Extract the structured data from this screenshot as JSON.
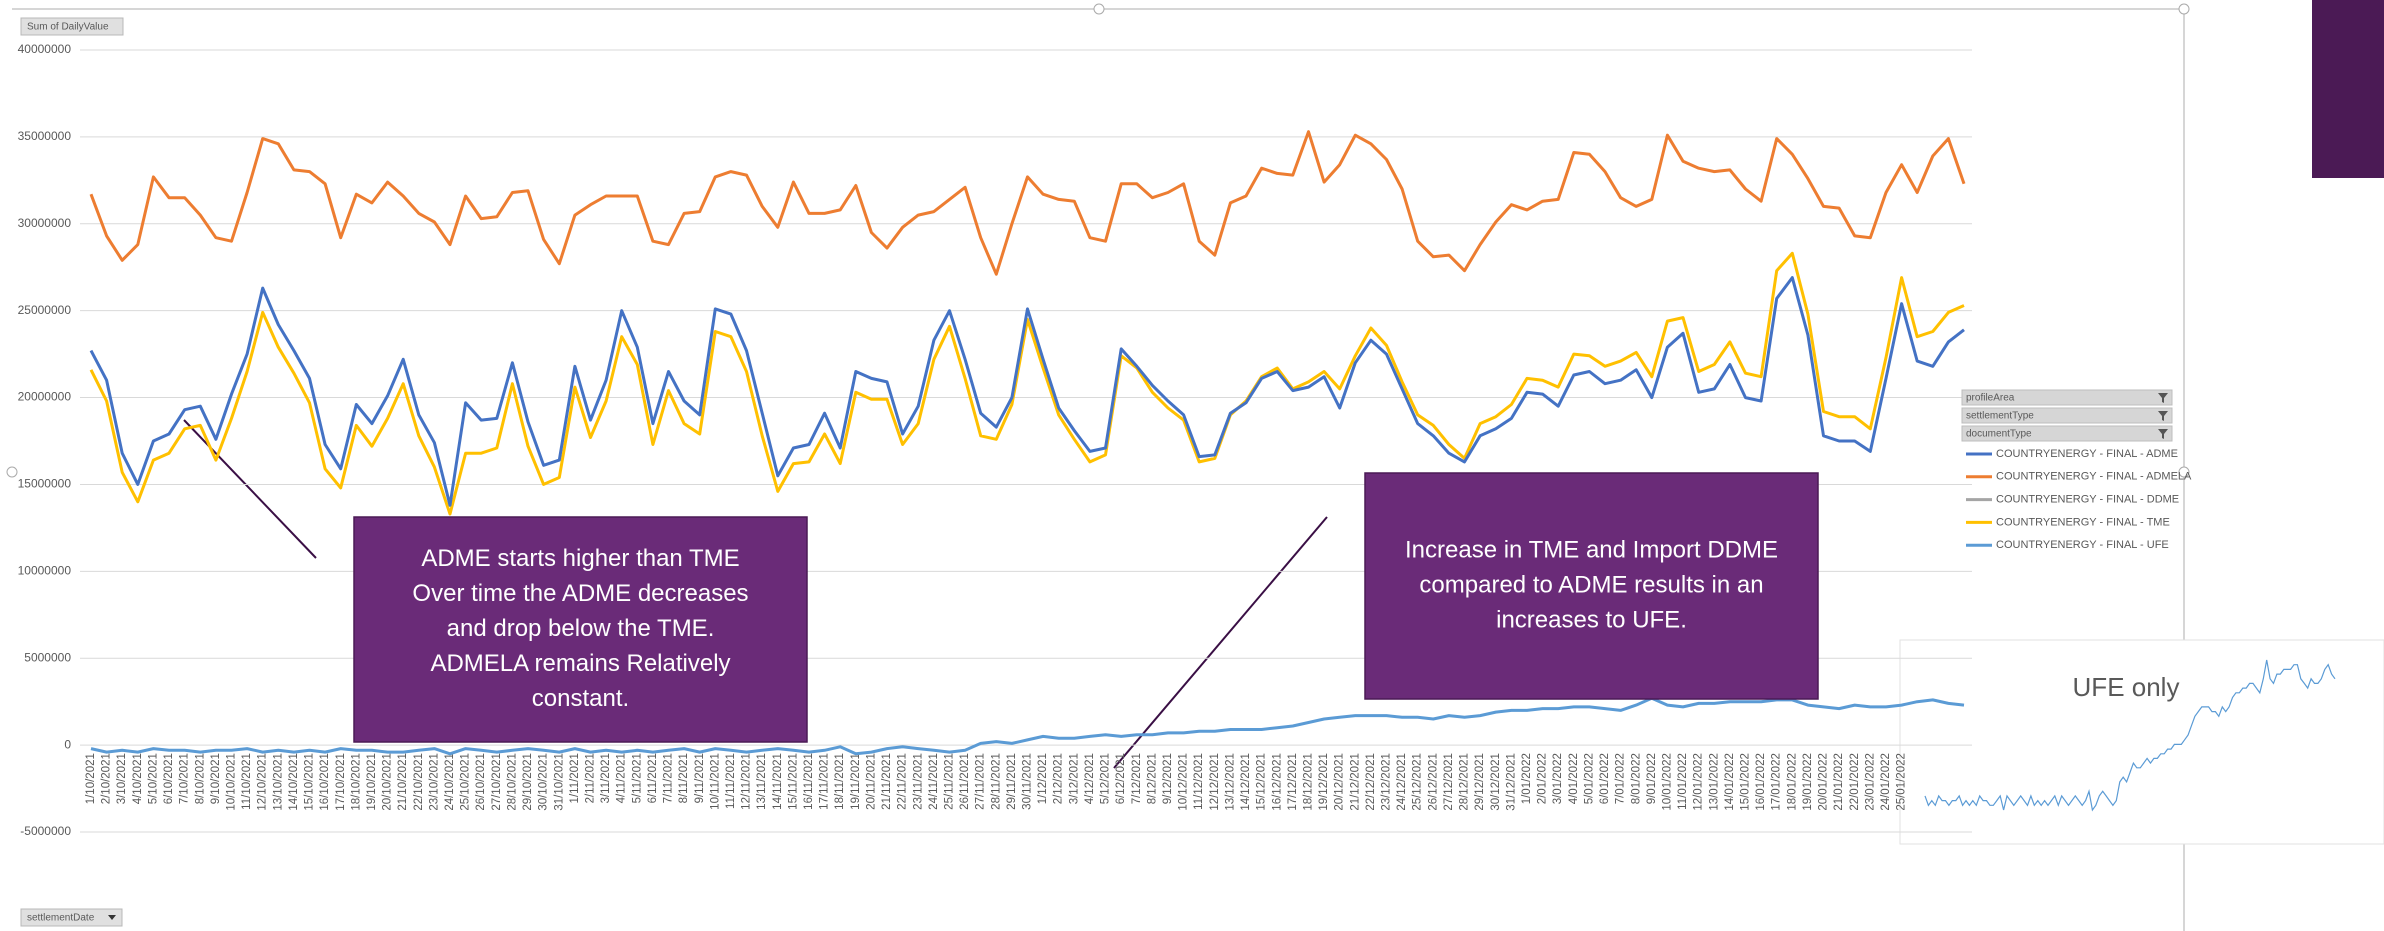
{
  "chart_data": {
    "type": "line",
    "value_field_button": "Sum of DailyValue",
    "axis_field_button": "settlementDate",
    "filters": [
      "profileArea",
      "settlementType",
      "documentType"
    ],
    "inset_title": "UFE only",
    "annotations": [
      {
        "lines": [
          "ADME starts higher than TME",
          "Over time the ADME decreases",
          "and drop below the TME.",
          "ADMELA remains Relatively",
          "constant."
        ]
      },
      {
        "lines": [
          "Increase in TME and Import DDME",
          "compared to ADME results in an",
          "increases to UFE."
        ]
      }
    ],
    "ylim": [
      -5000000,
      40000000
    ],
    "yticks": [
      40000000,
      35000000,
      30000000,
      25000000,
      20000000,
      15000000,
      10000000,
      5000000,
      0,
      -5000000
    ],
    "grid": true,
    "categories": [
      "1/10/2021",
      "2/10/2021",
      "3/10/2021",
      "4/10/2021",
      "5/10/2021",
      "6/10/2021",
      "7/10/2021",
      "8/10/2021",
      "9/10/2021",
      "10/10/2021",
      "11/10/2021",
      "12/10/2021",
      "13/10/2021",
      "14/10/2021",
      "15/10/2021",
      "16/10/2021",
      "17/10/2021",
      "18/10/2021",
      "19/10/2021",
      "20/10/2021",
      "21/10/2021",
      "22/10/2021",
      "23/10/2021",
      "24/10/2021",
      "25/10/2021",
      "26/10/2021",
      "27/10/2021",
      "28/10/2021",
      "29/10/2021",
      "30/10/2021",
      "31/10/2021",
      "1/11/2021",
      "2/11/2021",
      "3/11/2021",
      "4/11/2021",
      "5/11/2021",
      "6/11/2021",
      "7/11/2021",
      "8/11/2021",
      "9/11/2021",
      "10/11/2021",
      "11/11/2021",
      "12/11/2021",
      "13/11/2021",
      "14/11/2021",
      "15/11/2021",
      "16/11/2021",
      "17/11/2021",
      "18/11/2021",
      "19/11/2021",
      "20/11/2021",
      "21/11/2021",
      "22/11/2021",
      "23/11/2021",
      "24/11/2021",
      "25/11/2021",
      "26/11/2021",
      "27/11/2021",
      "28/11/2021",
      "29/11/2021",
      "30/11/2021",
      "1/12/2021",
      "2/12/2021",
      "3/12/2021",
      "4/12/2021",
      "5/12/2021",
      "6/12/2021",
      "7/12/2021",
      "8/12/2021",
      "9/12/2021",
      "10/12/2021",
      "11/12/2021",
      "12/12/2021",
      "13/12/2021",
      "14/12/2021",
      "15/12/2021",
      "16/12/2021",
      "17/12/2021",
      "18/12/2021",
      "19/12/2021",
      "20/12/2021",
      "21/12/2021",
      "22/12/2021",
      "23/12/2021",
      "24/12/2021",
      "25/12/2021",
      "26/12/2021",
      "27/12/2021",
      "28/12/2021",
      "29/12/2021",
      "30/12/2021",
      "31/12/2021",
      "1/01/2022",
      "2/01/2022",
      "3/01/2022",
      "4/01/2022",
      "5/01/2022",
      "6/01/2022",
      "7/01/2022",
      "8/01/2022",
      "9/01/2022",
      "10/01/2022",
      "11/01/2022",
      "12/01/2022",
      "13/01/2022",
      "14/01/2022",
      "15/01/2022",
      "16/01/2022",
      "17/01/2022",
      "18/01/2022",
      "19/01/2022",
      "20/01/2022",
      "21/01/2022",
      "22/01/2022",
      "23/01/2022",
      "24/01/2022",
      "25/01/2022",
      null,
      null,
      null,
      null
    ],
    "series": [
      {
        "name": "COUNTRYENERGY - FINAL - ADME",
        "color": "#4472c4",
        "values": [
          22700000,
          21000000,
          16800000,
          15000000,
          17500000,
          17900000,
          19300000,
          19500000,
          17600000,
          20200000,
          22500000,
          26300000,
          24200000,
          22700000,
          21100000,
          17300000,
          15900000,
          19600000,
          18500000,
          20100000,
          22200000,
          19000000,
          17400000,
          13800000,
          19700000,
          18700000,
          18800000,
          22000000,
          18600000,
          16100000,
          16400000,
          21800000,
          18700000,
          21000000,
          25000000,
          22900000,
          18500000,
          21500000,
          19800000,
          19000000,
          25100000,
          24800000,
          22700000,
          19100000,
          15500000,
          17100000,
          17300000,
          19100000,
          17100000,
          21500000,
          21100000,
          20900000,
          17900000,
          19500000,
          23300000,
          25000000,
          22200000,
          19100000,
          18300000,
          20000000,
          25100000,
          22200000,
          19400000,
          18100000,
          16900000,
          17100000,
          22800000,
          21800000,
          20700000,
          19800000,
          19000000,
          16600000,
          16700000,
          19100000,
          19700000,
          21100000,
          21500000,
          20400000,
          20600000,
          21200000,
          19400000,
          22000000,
          23300000,
          22500000,
          20500000,
          18500000,
          17800000,
          16800000,
          16300000,
          17800000,
          18200000,
          18800000,
          20300000,
          20200000,
          19500000,
          21300000,
          21500000,
          20800000,
          21000000,
          21600000,
          20000000,
          22900000,
          23700000,
          20300000,
          20500000,
          21900000,
          20000000,
          19800000,
          25700000,
          26900000,
          23600000,
          17800000,
          17500000,
          17500000,
          16900000,
          21100000,
          25400000,
          22100000,
          21800000,
          23200000,
          23900000
        ]
      },
      {
        "name": "COUNTRYENERGY - FINAL - ADMELA",
        "color": "#ed7d31",
        "values": [
          31700000,
          29300000,
          27900000,
          28800000,
          32700000,
          31500000,
          31500000,
          30500000,
          29200000,
          29000000,
          31800000,
          34900000,
          34600000,
          33100000,
          33000000,
          32300000,
          29200000,
          31700000,
          31200000,
          32400000,
          31600000,
          30600000,
          30100000,
          28800000,
          31600000,
          30300000,
          30400000,
          31800000,
          31900000,
          29100000,
          27700000,
          30500000,
          31100000,
          31600000,
          31600000,
          31600000,
          29000000,
          28800000,
          30600000,
          30700000,
          32700000,
          33000000,
          32800000,
          31000000,
          29800000,
          32400000,
          30600000,
          30600000,
          30800000,
          32200000,
          29500000,
          28600000,
          29800000,
          30500000,
          30700000,
          31400000,
          32100000,
          29200000,
          27100000,
          30000000,
          32700000,
          31700000,
          31400000,
          31300000,
          29200000,
          29000000,
          32300000,
          32300000,
          31500000,
          31800000,
          32300000,
          29000000,
          28200000,
          31200000,
          31600000,
          33200000,
          32900000,
          32800000,
          35300000,
          32400000,
          33400000,
          35100000,
          34600000,
          33700000,
          32000000,
          29000000,
          28100000,
          28200000,
          27300000,
          28800000,
          30100000,
          31100000,
          30800000,
          31300000,
          31400000,
          34100000,
          34000000,
          33000000,
          31500000,
          31000000,
          31400000,
          35100000,
          33600000,
          33200000,
          33000000,
          33100000,
          32000000,
          31300000,
          34900000,
          34000000,
          32600000,
          31000000,
          30900000,
          29300000,
          29200000,
          31800000,
          33400000,
          31800000,
          33900000,
          34900000,
          32300000
        ]
      },
      {
        "name": "COUNTRYENERGY - FINAL - DDME",
        "color": "#a5a5a5",
        "values": [
          null,
          null,
          null,
          null,
          null,
          null,
          null,
          null,
          null,
          null,
          null,
          null,
          null,
          null,
          null,
          null,
          null,
          null,
          null,
          null,
          null,
          null,
          null,
          null,
          null,
          null,
          null,
          null,
          null,
          null,
          null,
          null,
          null,
          null,
          null,
          null,
          null,
          null,
          null,
          null,
          null,
          null,
          null,
          null,
          null,
          null,
          null,
          null,
          null,
          null,
          null,
          null,
          null,
          null,
          null,
          null,
          null,
          null,
          null,
          null,
          null,
          null,
          null,
          null,
          null,
          null,
          null,
          null,
          null,
          null,
          null,
          null,
          null,
          null,
          null,
          null,
          null,
          null,
          null,
          null,
          null,
          null,
          null,
          null,
          null,
          null,
          null,
          null,
          null,
          null,
          null,
          null,
          null,
          null,
          null,
          null,
          null,
          null,
          null,
          null,
          null,
          null,
          null,
          null,
          null,
          null,
          null,
          null,
          null,
          null,
          null,
          null,
          null,
          null,
          null,
          null,
          null,
          null,
          null,
          null,
          null
        ]
      },
      {
        "name": "COUNTRYENERGY - FINAL - TME",
        "color": "#ffc000",
        "values": [
          21600000,
          19800000,
          15700000,
          14000000,
          16400000,
          16800000,
          18200000,
          18400000,
          16400000,
          18800000,
          21500000,
          24900000,
          22900000,
          21400000,
          19700000,
          15900000,
          14800000,
          18400000,
          17200000,
          18800000,
          20800000,
          17800000,
          16000000,
          13300000,
          16800000,
          16800000,
          17100000,
          20800000,
          17200000,
          15000000,
          15400000,
          20600000,
          17700000,
          19800000,
          23500000,
          21900000,
          17300000,
          20400000,
          18500000,
          17900000,
          23800000,
          23500000,
          21500000,
          17800000,
          14600000,
          16200000,
          16300000,
          17900000,
          16200000,
          20300000,
          19900000,
          19900000,
          17300000,
          18500000,
          22200000,
          24100000,
          21100000,
          17800000,
          17600000,
          19600000,
          24500000,
          21700000,
          19000000,
          17600000,
          16300000,
          16700000,
          22400000,
          21700000,
          20300000,
          19400000,
          18700000,
          16300000,
          16500000,
          19000000,
          19800000,
          21200000,
          21700000,
          20500000,
          20900000,
          21500000,
          20500000,
          22400000,
          24000000,
          23000000,
          20900000,
          19000000,
          18400000,
          17300000,
          16500000,
          18500000,
          18900000,
          19600000,
          21100000,
          21000000,
          20600000,
          22500000,
          22400000,
          21800000,
          22100000,
          22600000,
          21200000,
          24400000,
          24600000,
          21500000,
          21900000,
          23200000,
          21400000,
          21200000,
          27300000,
          28300000,
          24800000,
          19200000,
          18900000,
          18900000,
          18200000,
          22300000,
          26900000,
          23500000,
          23800000,
          24900000,
          25300000
        ]
      },
      {
        "name": "COUNTRYENERGY - FINAL - UFE",
        "color": "#5b9bd5",
        "values": [
          -200000,
          -400000,
          -300000,
          -400000,
          -200000,
          -300000,
          -300000,
          -400000,
          -300000,
          -300000,
          -200000,
          -400000,
          -300000,
          -400000,
          -300000,
          -400000,
          -200000,
          -300000,
          -300000,
          -400000,
          -400000,
          -300000,
          -200000,
          -500000,
          -200000,
          -300000,
          -400000,
          -300000,
          -200000,
          -300000,
          -400000,
          -200000,
          -400000,
          -300000,
          -400000,
          -300000,
          -400000,
          -300000,
          -200000,
          -400000,
          -200000,
          -300000,
          -400000,
          -300000,
          -200000,
          -300000,
          -400000,
          -300000,
          -100000,
          -500000,
          -400000,
          -200000,
          -100000,
          -200000,
          -300000,
          -400000,
          -300000,
          100000,
          200000,
          100000,
          300000,
          500000,
          400000,
          400000,
          500000,
          600000,
          500000,
          600000,
          600000,
          700000,
          700000,
          800000,
          800000,
          900000,
          900000,
          900000,
          1000000,
          1100000,
          1300000,
          1500000,
          1600000,
          1700000,
          1700000,
          1700000,
          1600000,
          1600000,
          1500000,
          1700000,
          1600000,
          1700000,
          1900000,
          2000000,
          2000000,
          2100000,
          2100000,
          2200000,
          2200000,
          2100000,
          2000000,
          2300000,
          2700000,
          2300000,
          2200000,
          2400000,
          2400000,
          2500000,
          2500000,
          2500000,
          2600000,
          2600000,
          2300000,
          2200000,
          2100000,
          2300000,
          2200000,
          2200000,
          2300000,
          2500000,
          2600000,
          2400000,
          2300000
        ]
      }
    ]
  }
}
